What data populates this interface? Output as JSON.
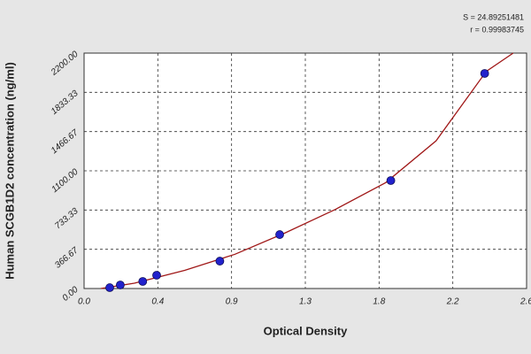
{
  "chart_data": {
    "type": "scatter",
    "x_label": "Optical Density",
    "y_label": "Human SCGB1D2 concentration (ng/ml)",
    "annotations": [
      "S = 24.89251481",
      "r = 0.99983745"
    ],
    "xlim": [
      0,
      2.64
    ],
    "xticks": [
      {
        "value": 0,
        "label": "0.0"
      },
      {
        "value": 0.44,
        "label": "0.4"
      },
      {
        "value": 0.88,
        "label": "0.9"
      },
      {
        "value": 1.32,
        "label": "1.3"
      },
      {
        "value": 1.76,
        "label": "1.8"
      },
      2.2,
      {
        "value": 2.64,
        "label": "2.6"
      }
    ],
    "ylim": [
      0,
      2200
    ],
    "yticks": [
      {
        "value": 0,
        "label": "0.00"
      },
      366.67,
      733.33,
      {
        "value": 1100,
        "label": "1100.00"
      },
      1466.67,
      1833.33,
      {
        "value": 2200,
        "label": "2200.00"
      }
    ],
    "grid": true,
    "series": [
      {
        "type": "scatter",
        "color": "#2222cc",
        "x": [
          0.153,
          0.216,
          0.35,
          0.433,
          0.81,
          1.167,
          1.83,
          2.39
        ],
        "values": [
          8,
          33,
          66,
          124,
          256,
          504,
          1009,
          2010
        ]
      },
      {
        "type": "line",
        "color": "#a01818",
        "x": [
          0.1,
          0.3,
          0.6,
          0.9,
          1.2,
          1.5,
          1.8,
          2.1,
          2.4,
          2.56
        ],
        "values": [
          0,
          50,
          170,
          320,
          520,
          740,
          990,
          1380,
          2030,
          2200
        ]
      }
    ]
  }
}
